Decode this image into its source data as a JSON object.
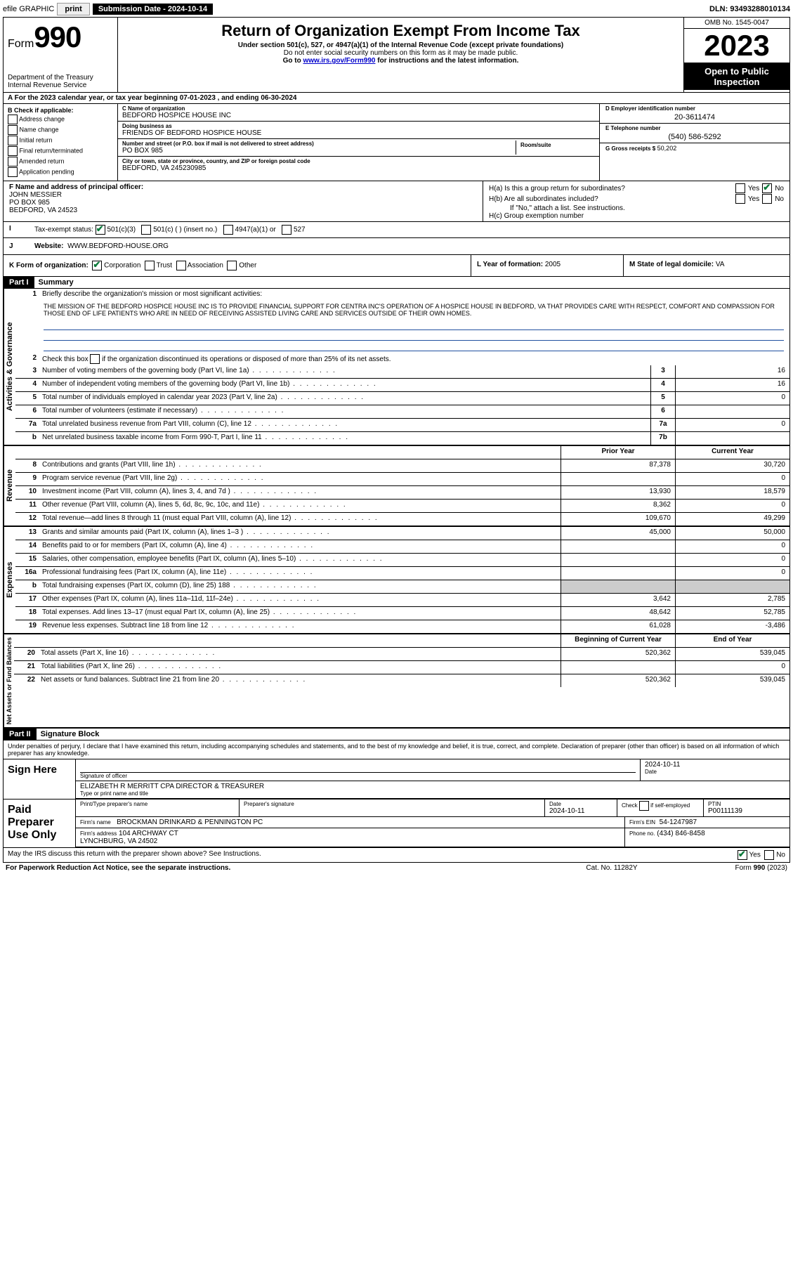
{
  "topbar": {
    "efile": "efile GRAPHIC",
    "print": "print",
    "submission_label": "Submission Date - 2024-10-14",
    "dln": "DLN: 93493288010134"
  },
  "header": {
    "form_prefix": "Form",
    "form_number": "990",
    "title": "Return of Organization Exempt From Income Tax",
    "sub1": "Under section 501(c), 527, or 4947(a)(1) of the Internal Revenue Code (except private foundations)",
    "sub2": "Do not enter social security numbers on this form as it may be made public.",
    "sub3_pre": "Go to ",
    "sub3_link": "www.irs.gov/Form990",
    "sub3_post": " for instructions and the latest information.",
    "dept": "Department of the Treasury\nInternal Revenue Service",
    "omb": "OMB No. 1545-0047",
    "year": "2023",
    "inspect": "Open to Public Inspection"
  },
  "rowA": "A  For the 2023 calendar year, or tax year beginning 07-01-2023    , and ending 06-30-2024",
  "colB": {
    "title": "B Check if applicable:",
    "items": [
      "Address change",
      "Name change",
      "Initial return",
      "Final return/terminated",
      "Amended return",
      "Application pending"
    ]
  },
  "colC": {
    "name_lbl": "C Name of organization",
    "name": "BEDFORD HOSPICE HOUSE INC",
    "dba_lbl": "Doing business as",
    "dba": "FRIENDS OF BEDFORD HOSPICE HOUSE",
    "addr_lbl": "Number and street (or P.O. box if mail is not delivered to street address)",
    "room_lbl": "Room/suite",
    "addr": "PO BOX 985",
    "city_lbl": "City or town, state or province, country, and ZIP or foreign postal code",
    "city": "BEDFORD, VA  245230985"
  },
  "colD": {
    "ein_lbl": "D Employer identification number",
    "ein": "20-3611474",
    "phone_lbl": "E Telephone number",
    "phone": "(540) 586-5292",
    "gross_lbl": "G Gross receipts $",
    "gross": "50,202"
  },
  "rowF": {
    "lbl": "F Name and address of principal officer:",
    "name": "JOHN MESSIER",
    "addr1": "PO BOX 985",
    "addr2": "BEDFORD, VA  24523"
  },
  "rowH": {
    "a_q": "H(a)  Is this a group return for subordinates?",
    "b_q": "H(b)  Are all subordinates included?",
    "b_note": "If \"No,\" attach a list. See instructions.",
    "c_q": "H(c)  Group exemption number",
    "yes": "Yes",
    "no": "No"
  },
  "rowI": {
    "lbl": "Tax-exempt status:",
    "o1": "501(c)(3)",
    "o2": "501(c) (  ) (insert no.)",
    "o3": "4947(a)(1) or",
    "o4": "527"
  },
  "rowJ": {
    "lbl": "Website:",
    "val": "WWW.BEDFORD-HOUSE.ORG"
  },
  "rowK": {
    "lbl": "K Form of organization:",
    "o1": "Corporation",
    "o2": "Trust",
    "o3": "Association",
    "o4": "Other",
    "l_lbl": "L Year of formation:",
    "l_val": "2005",
    "m_lbl": "M State of legal domicile:",
    "m_val": "VA"
  },
  "part1": {
    "hdr": "Part I",
    "title": "Summary",
    "l1_lbl": "Briefly describe the organization's mission or most significant activities:",
    "l1_text": "THE MISSION OF THE BEDFORD HOSPICE HOUSE INC IS TO PROVIDE FINANCIAL SUPPORT FOR CENTRA INC'S OPERATION OF A HOSPICE HOUSE IN BEDFORD, VA THAT PROVIDES CARE WITH RESPECT, COMFORT AND COMPASSION FOR THOSE END OF LIFE PATIENTS WHO ARE IN NEED OF RECEIVING ASSISTED LIVING CARE AND SERVICES OUTSIDE OF THEIR OWN HOMES.",
    "l2": "Check this box      if the organization discontinued its operations or disposed of more than 25% of its net assets.",
    "lines_gov": [
      {
        "n": "3",
        "d": "Number of voting members of the governing body (Part VI, line 1a)",
        "bn": "3",
        "v": "16"
      },
      {
        "n": "4",
        "d": "Number of independent voting members of the governing body (Part VI, line 1b)",
        "bn": "4",
        "v": "16"
      },
      {
        "n": "5",
        "d": "Total number of individuals employed in calendar year 2023 (Part V, line 2a)",
        "bn": "5",
        "v": "0"
      },
      {
        "n": "6",
        "d": "Total number of volunteers (estimate if necessary)",
        "bn": "6",
        "v": ""
      },
      {
        "n": "7a",
        "d": "Total unrelated business revenue from Part VIII, column (C), line 12",
        "bn": "7a",
        "v": "0"
      },
      {
        "n": "b",
        "d": "Net unrelated business taxable income from Form 990-T, Part I, line 11",
        "bn": "7b",
        "v": ""
      }
    ],
    "hdr_prior": "Prior Year",
    "hdr_curr": "Current Year",
    "lines_rev": [
      {
        "n": "8",
        "d": "Contributions and grants (Part VIII, line 1h)",
        "p": "87,378",
        "c": "30,720"
      },
      {
        "n": "9",
        "d": "Program service revenue (Part VIII, line 2g)",
        "p": "",
        "c": "0"
      },
      {
        "n": "10",
        "d": "Investment income (Part VIII, column (A), lines 3, 4, and 7d )",
        "p": "13,930",
        "c": "18,579"
      },
      {
        "n": "11",
        "d": "Other revenue (Part VIII, column (A), lines 5, 6d, 8c, 9c, 10c, and 11e)",
        "p": "8,362",
        "c": "0"
      },
      {
        "n": "12",
        "d": "Total revenue—add lines 8 through 11 (must equal Part VIII, column (A), line 12)",
        "p": "109,670",
        "c": "49,299"
      }
    ],
    "lines_exp": [
      {
        "n": "13",
        "d": "Grants and similar amounts paid (Part IX, column (A), lines 1–3 )",
        "p": "45,000",
        "c": "50,000"
      },
      {
        "n": "14",
        "d": "Benefits paid to or for members (Part IX, column (A), line 4)",
        "p": "",
        "c": "0"
      },
      {
        "n": "15",
        "d": "Salaries, other compensation, employee benefits (Part IX, column (A), lines 5–10)",
        "p": "",
        "c": "0"
      },
      {
        "n": "16a",
        "d": "Professional fundraising fees (Part IX, column (A), line 11e)",
        "p": "",
        "c": "0"
      },
      {
        "n": "b",
        "d": "Total fundraising expenses (Part IX, column (D), line 25) 188",
        "p": "grey",
        "c": "grey"
      },
      {
        "n": "17",
        "d": "Other expenses (Part IX, column (A), lines 11a–11d, 11f–24e)",
        "p": "3,642",
        "c": "2,785"
      },
      {
        "n": "18",
        "d": "Total expenses. Add lines 13–17 (must equal Part IX, column (A), line 25)",
        "p": "48,642",
        "c": "52,785"
      },
      {
        "n": "19",
        "d": "Revenue less expenses. Subtract line 18 from line 12",
        "p": "61,028",
        "c": "-3,486"
      }
    ],
    "hdr_beg": "Beginning of Current Year",
    "hdr_end": "End of Year",
    "lines_net": [
      {
        "n": "20",
        "d": "Total assets (Part X, line 16)",
        "p": "520,362",
        "c": "539,045"
      },
      {
        "n": "21",
        "d": "Total liabilities (Part X, line 26)",
        "p": "",
        "c": "0"
      },
      {
        "n": "22",
        "d": "Net assets or fund balances. Subtract line 21 from line 20",
        "p": "520,362",
        "c": "539,045"
      }
    ],
    "vtab_gov": "Activities & Governance",
    "vtab_rev": "Revenue",
    "vtab_exp": "Expenses",
    "vtab_net": "Net Assets or Fund Balances"
  },
  "part2": {
    "hdr": "Part II",
    "title": "Signature Block",
    "penalties": "Under penalties of perjury, I declare that I have examined this return, including accompanying schedules and statements, and to the best of my knowledge and belief, it is true, correct, and complete. Declaration of preparer (other than officer) is based on all information of which preparer has any knowledge."
  },
  "sign": {
    "here": "Sign Here",
    "sig_lbl": "Signature of officer",
    "date_lbl": "Date",
    "date": "2024-10-11",
    "name": "ELIZABETH R MERRITT CPA  DIRECTOR & TREASURER",
    "name_lbl": "Type or print name and title"
  },
  "paid": {
    "title": "Paid Preparer Use Only",
    "c1": "Print/Type preparer's name",
    "c2": "Preparer's signature",
    "c3_lbl": "Date",
    "c3": "2024-10-11",
    "c4_lbl": "Check      if self-employed",
    "c5_lbl": "PTIN",
    "c5": "P00111139",
    "firm_lbl": "Firm's name",
    "firm": "BROCKMAN DRINKARD & PENNINGTON PC",
    "ein_lbl": "Firm's EIN",
    "ein": "54-1247987",
    "addr_lbl": "Firm's address",
    "addr": "104 ARCHWAY CT\nLYNCHBURG, VA  24502",
    "phone_lbl": "Phone no.",
    "phone": "(434) 846-8458"
  },
  "footer": {
    "discuss": "May the IRS discuss this return with the preparer shown above? See Instructions.",
    "yes": "Yes",
    "no": "No",
    "paperwork": "For Paperwork Reduction Act Notice, see the separate instructions.",
    "cat": "Cat. No. 11282Y",
    "form": "Form 990 (2023)"
  }
}
